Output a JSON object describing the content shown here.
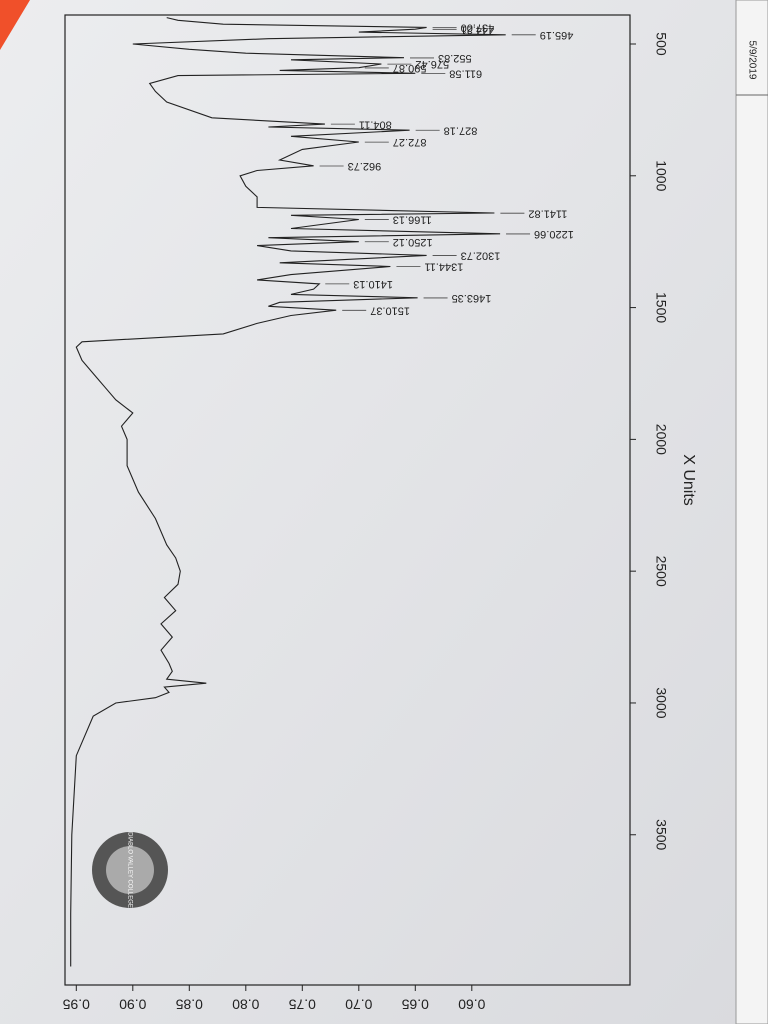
{
  "chart_data": {
    "type": "line",
    "xlabel": "X Units",
    "date": "5/9/2019",
    "logo_text": "DIABLO VALLEY COLLEGE",
    "xlim": [
      390,
      4070
    ],
    "xticks": [
      500,
      1000,
      1500,
      2000,
      2500,
      3000,
      3500
    ],
    "ylim": [
      0.46,
      0.96
    ],
    "yticks": [
      {
        "value": 0.6,
        "label": "0.60"
      },
      0.65,
      {
        "value": 0.7,
        "label": "0.70"
      },
      0.75,
      {
        "value": 0.8,
        "label": "0.80"
      },
      0.85,
      {
        "value": 0.9,
        "label": "0.90"
      },
      0.95
    ],
    "x": [
      4000,
      3800,
      3500,
      3200,
      3050,
      3000,
      2980,
      2960,
      2940,
      2925,
      2910,
      2880,
      2850,
      2800,
      2750,
      2700,
      2650,
      2600,
      2550,
      2500,
      2450,
      2400,
      2300,
      2200,
      2100,
      2000,
      1950,
      1900,
      1850,
      1800,
      1750,
      1700,
      1650,
      1630,
      1600,
      1560,
      1530,
      1510,
      1495,
      1480,
      1463,
      1450,
      1430,
      1410,
      1395,
      1375,
      1344,
      1330,
      1302,
      1285,
      1265,
      1250,
      1235,
      1220,
      1200,
      1166,
      1150,
      1141,
      1120,
      1080,
      1040,
      1000,
      980,
      962,
      940,
      900,
      872,
      850,
      827,
      815,
      804,
      780,
      720,
      680,
      650,
      620,
      611,
      600,
      590,
      576,
      560,
      552,
      535,
      520,
      500,
      480,
      465,
      455,
      444,
      437,
      425,
      410,
      400
    ],
    "series": [
      {
        "color": "#222222",
        "values": [
          0.955,
          0.955,
          0.954,
          0.95,
          0.935,
          0.915,
          0.88,
          0.868,
          0.872,
          0.835,
          0.87,
          0.865,
          0.868,
          0.875,
          0.865,
          0.875,
          0.862,
          0.872,
          0.86,
          0.858,
          0.862,
          0.87,
          0.88,
          0.895,
          0.905,
          0.905,
          0.91,
          0.9,
          0.915,
          0.925,
          0.935,
          0.945,
          0.95,
          0.945,
          0.82,
          0.79,
          0.76,
          0.72,
          0.78,
          0.77,
          0.648,
          0.76,
          0.74,
          0.735,
          0.79,
          0.76,
          0.672,
          0.77,
          0.64,
          0.76,
          0.79,
          0.7,
          0.78,
          0.575,
          0.76,
          0.7,
          0.76,
          0.58,
          0.79,
          0.79,
          0.8,
          0.805,
          0.79,
          0.74,
          0.77,
          0.75,
          0.7,
          0.76,
          0.655,
          0.78,
          0.73,
          0.83,
          0.87,
          0.88,
          0.885,
          0.86,
          0.65,
          0.77,
          0.7,
          0.68,
          0.76,
          0.66,
          0.8,
          0.85,
          0.9,
          0.78,
          0.57,
          0.7,
          0.65,
          0.64,
          0.82,
          0.86,
          0.87
        ]
      }
    ],
    "peak_labels": [
      1510.37,
      1463.35,
      1410.13,
      1344.11,
      1302.73,
      1250.12,
      1220.66,
      1166.13,
      1141.82,
      962.73,
      872.27,
      827.18,
      804.11,
      611.58,
      590.87,
      576.42,
      552.83,
      465.19,
      444.21,
      {
        "value": 437,
        "label": "437.00"
      }
    ]
  }
}
